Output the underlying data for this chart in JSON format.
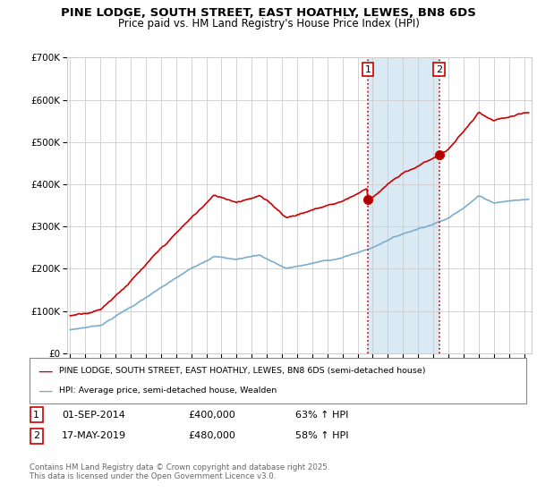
{
  "title": "PINE LODGE, SOUTH STREET, EAST HOATHLY, LEWES, BN8 6DS",
  "subtitle": "Price paid vs. HM Land Registry's House Price Index (HPI)",
  "legend_line1": "PINE LODGE, SOUTH STREET, EAST HOATHLY, LEWES, BN8 6DS (semi-detached house)",
  "legend_line2": "HPI: Average price, semi-detached house, Wealden",
  "transaction1_date": "01-SEP-2014",
  "transaction1_price": 400000,
  "transaction1_label": "1",
  "transaction1_pct": "63% ↑ HPI",
  "transaction2_date": "17-MAY-2019",
  "transaction2_price": 480000,
  "transaction2_label": "2",
  "transaction2_pct": "58% ↑ HPI",
  "footnote": "Contains HM Land Registry data © Crown copyright and database right 2025.\nThis data is licensed under the Open Government Licence v3.0.",
  "red_color": "#cc0000",
  "blue_color": "#7aadcf",
  "shade_color": "#daeaf5",
  "dashed_color": "#cc0000",
  "ylim_max": 700000,
  "xlim_start": 1994.8,
  "xlim_end": 2025.5,
  "transaction1_x": 2014.67,
  "transaction2_x": 2019.38,
  "yticks": [
    0,
    100000,
    200000,
    300000,
    400000,
    500000,
    600000,
    700000
  ]
}
